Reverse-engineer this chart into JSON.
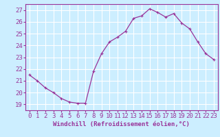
{
  "x": [
    0,
    1,
    2,
    3,
    4,
    5,
    6,
    7,
    8,
    9,
    10,
    11,
    12,
    13,
    14,
    15,
    16,
    17,
    18,
    19,
    20,
    21,
    22,
    23
  ],
  "y": [
    21.5,
    21.0,
    20.4,
    20.0,
    19.5,
    19.2,
    19.1,
    19.1,
    21.8,
    23.3,
    24.3,
    24.7,
    25.2,
    26.3,
    26.5,
    27.1,
    26.8,
    26.4,
    26.7,
    25.9,
    25.4,
    24.3,
    23.3,
    22.8
  ],
  "line_color": "#993399",
  "marker": "+",
  "bg_color": "#cceeff",
  "grid_color": "#ffffff",
  "xlabel": "Windchill (Refroidissement éolien,°C)",
  "xlim": [
    -0.5,
    23.5
  ],
  "ylim": [
    18.5,
    27.5
  ],
  "yticks": [
    19,
    20,
    21,
    22,
    23,
    24,
    25,
    26,
    27
  ],
  "xticks": [
    0,
    1,
    2,
    3,
    4,
    5,
    6,
    7,
    8,
    9,
    10,
    11,
    12,
    13,
    14,
    15,
    16,
    17,
    18,
    19,
    20,
    21,
    22,
    23
  ],
  "tick_color": "#993399",
  "label_color": "#993399",
  "font_size": 6.5
}
